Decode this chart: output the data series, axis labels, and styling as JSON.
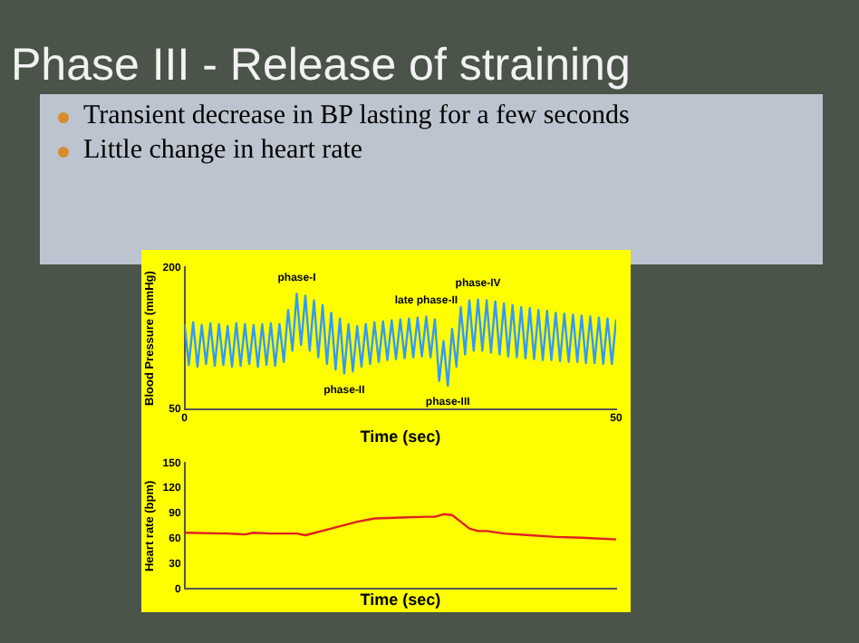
{
  "chart_data": [
    {
      "type": "line",
      "title": "Phase III - Release of straining",
      "annotations": [
        "Transient decrease in BP lasting for a few seconds",
        "Little change in heart rate",
        {
          "text": "phase-I",
          "x": 13,
          "y": 172
        },
        {
          "text": "phase-II",
          "x": 18.5,
          "y": 88
        },
        {
          "text": "late phase-II",
          "x": 28,
          "y": 148
        },
        {
          "text": "phase-III",
          "x": 30.5,
          "y": 75
        },
        {
          "text": "phase-IV",
          "x": 34,
          "y": 166
        }
      ],
      "xlabel": "Time (sec)",
      "ylabel": "Blood Pressure (mmHg)",
      "xlim": [
        0,
        50
      ],
      "xticks": [
        0,
        50
      ],
      "ylim": [
        50,
        200
      ],
      "yticks": [
        50,
        200
      ],
      "grid": false,
      "legend": false,
      "x": [
        0,
        0.5,
        1,
        1.5,
        2,
        2.5,
        3,
        3.5,
        4,
        4.5,
        5,
        5.5,
        6,
        6.5,
        7,
        7.5,
        8,
        8.5,
        9,
        9.5,
        10,
        10.5,
        11,
        11.5,
        12,
        12.5,
        13,
        13.5,
        14,
        14.5,
        15,
        15.5,
        16,
        16.5,
        17,
        17.5,
        18,
        18.5,
        19,
        19.5,
        20,
        20.5,
        21,
        21.5,
        22,
        22.5,
        23,
        23.5,
        24,
        24.5,
        25,
        25.5,
        26,
        26.5,
        27,
        27.5,
        28,
        28.5,
        29,
        29.5,
        30,
        30.5,
        31,
        31.5,
        32,
        32.5,
        33,
        33.5,
        34,
        34.5,
        35,
        35.5,
        36,
        36.5,
        37,
        37.5,
        38,
        38.5,
        39,
        39.5,
        40,
        40.5,
        41,
        41.5,
        42,
        42.5,
        43,
        43.5,
        44,
        44.5,
        45,
        45.5,
        46,
        46.5,
        47,
        47.5,
        48,
        48.5,
        49,
        49.5,
        50
      ],
      "series": [
        {
          "color": "#3399ff",
          "values": [
            140,
            97,
            142,
            95,
            139,
            98,
            141,
            96,
            140,
            97,
            138,
            95,
            141,
            96,
            140,
            98,
            139,
            95,
            140,
            97,
            141,
            96,
            140,
            100,
            155,
            112,
            172,
            118,
            170,
            112,
            165,
            105,
            160,
            98,
            152,
            92,
            146,
            88,
            140,
            90,
            138,
            95,
            140,
            98,
            142,
            100,
            143,
            102,
            144,
            103,
            145,
            104,
            146,
            105,
            147,
            106,
            148,
            105,
            145,
            80,
            122,
            75,
            135,
            95,
            158,
            108,
            165,
            112,
            166,
            112,
            165,
            110,
            164,
            108,
            162,
            106,
            160,
            105,
            158,
            104,
            157,
            103,
            155,
            102,
            154,
            102,
            152,
            101,
            151,
            100,
            150,
            100,
            149,
            99,
            148,
            99,
            147,
            98,
            146,
            98,
            145
          ]
        }
      ]
    },
    {
      "type": "line",
      "xlabel": "Time (sec)",
      "ylabel": "Heart rate (bpm)",
      "xlim": [
        0,
        50
      ],
      "ylim": [
        0,
        150
      ],
      "yticks": [
        0,
        30,
        60,
        90,
        120,
        150
      ],
      "tick_labels": "y",
      "grid": false,
      "legend": false,
      "x": [
        0,
        5,
        7,
        8,
        10,
        13,
        14,
        17,
        20,
        22,
        25,
        28,
        29,
        30,
        31,
        32,
        33,
        34,
        35,
        37,
        40,
        43,
        46,
        50
      ],
      "series": [
        {
          "color": "#e02020",
          "values": [
            67,
            66,
            65,
            67,
            66,
            66,
            64,
            72,
            80,
            84,
            85,
            86,
            86,
            89,
            88,
            80,
            72,
            69,
            69,
            66,
            64,
            62,
            61,
            59
          ]
        }
      ]
    }
  ]
}
